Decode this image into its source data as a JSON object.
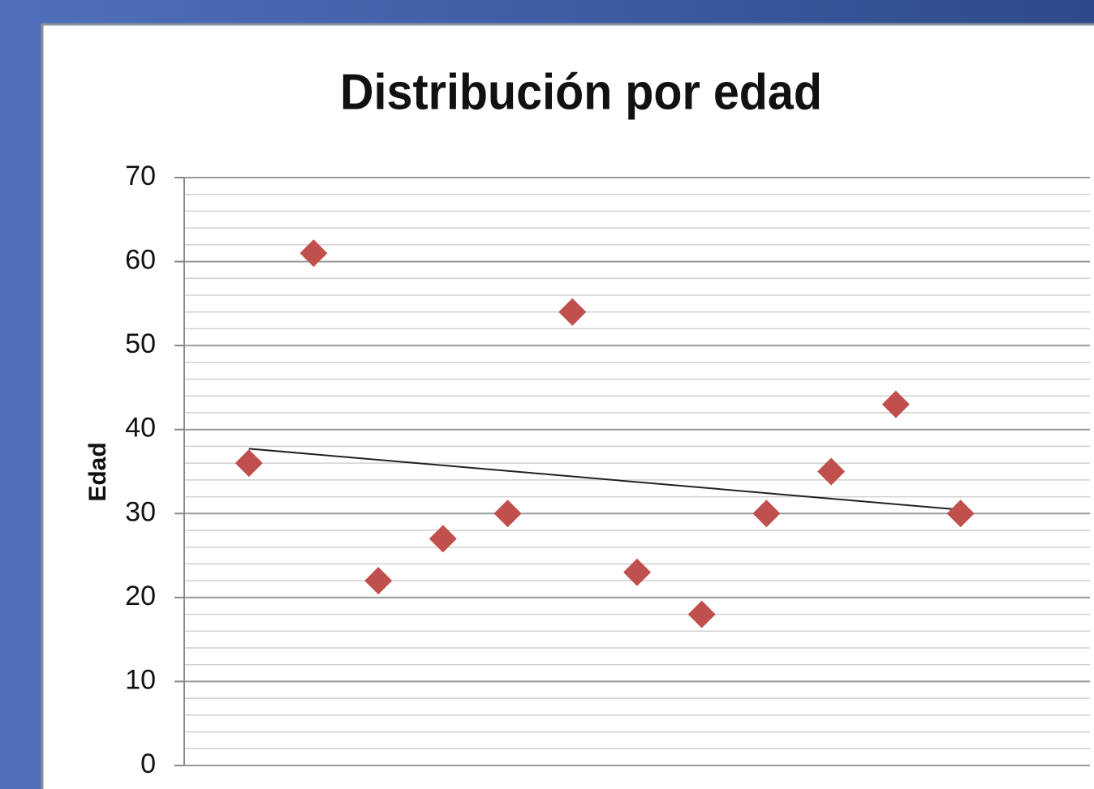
{
  "chart_data": {
    "type": "scatter",
    "title": "Distribución por edad",
    "y_label": "Edad",
    "x": [
      1,
      2,
      3,
      4,
      5,
      6,
      7,
      8,
      9,
      10,
      11,
      12
    ],
    "series": [
      {
        "color": "#c0504d",
        "values": [
          36,
          61,
          22,
          27,
          30,
          54,
          23,
          18,
          30,
          35,
          43,
          30
        ]
      }
    ],
    "xlim": [
      0,
      14
    ],
    "ylim": [
      0,
      70
    ],
    "yticks": [
      0,
      10,
      20,
      30,
      40,
      50,
      60,
      70
    ],
    "grid": true,
    "minor_grid_step": 2,
    "trendline": "linear"
  }
}
